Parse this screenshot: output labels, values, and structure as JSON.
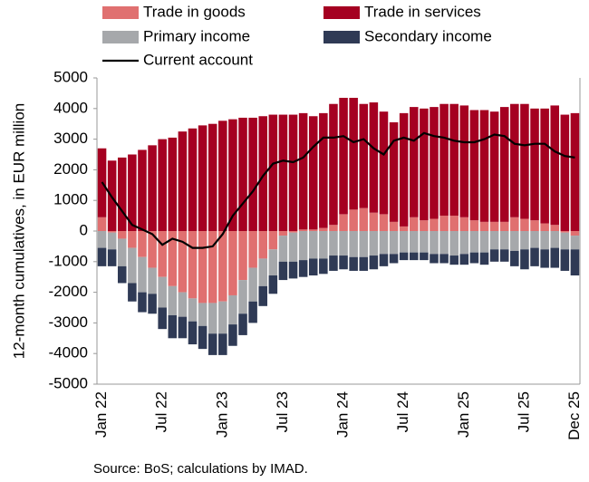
{
  "chart_data": {
    "type": "bar",
    "y_label": "12-month cumulatives, in EUR million",
    "source": "Source: BoS; calculations by IMAD.",
    "categories": [
      "Jan 22",
      null,
      null,
      null,
      null,
      null,
      "Jul 22",
      null,
      null,
      null,
      null,
      null,
      "Jan 23",
      null,
      null,
      null,
      null,
      null,
      "Jul 23",
      null,
      null,
      null,
      null,
      null,
      "Jan 24",
      null,
      null,
      null,
      null,
      null,
      "Jul 24",
      null,
      null,
      null,
      null,
      null,
      "Jan 25",
      null,
      null,
      null,
      null,
      null,
      "Jul 25",
      null,
      null,
      null,
      null,
      "Dec 25"
    ],
    "ylim": [
      -5000,
      5000
    ],
    "yticks": [
      5000,
      4000,
      3000,
      2000,
      1000,
      0,
      -1000,
      -2000,
      -3000,
      -4000,
      -5000
    ],
    "grid": false,
    "series": [
      {
        "name": "Trade in goods",
        "color": "#e07070",
        "type": "bar",
        "values": [
          450,
          -50,
          -250,
          -550,
          -850,
          -1200,
          -1500,
          -1800,
          -2000,
          -2200,
          -2350,
          -2350,
          -2300,
          -2100,
          -1600,
          -1200,
          -900,
          -600,
          -150,
          -50,
          50,
          50,
          100,
          200,
          550,
          700,
          750,
          600,
          550,
          300,
          150,
          450,
          350,
          400,
          500,
          500,
          450,
          350,
          300,
          300,
          300,
          450,
          400,
          350,
          250,
          200,
          -50,
          -150
        ]
      },
      {
        "name": "Trade in services",
        "color": "#a50021",
        "type": "bar",
        "values": [
          2250,
          2300,
          2400,
          2500,
          2650,
          2800,
          3000,
          3050,
          3250,
          3350,
          3450,
          3500,
          3600,
          3650,
          3700,
          3700,
          3750,
          3800,
          3800,
          3800,
          3800,
          3700,
          3750,
          3950,
          3800,
          3650,
          3400,
          3600,
          3350,
          3250,
          3700,
          3600,
          3650,
          3650,
          3650,
          3650,
          3650,
          3600,
          3650,
          3600,
          3750,
          3700,
          3750,
          3650,
          3750,
          3900,
          3800,
          3850
        ]
      },
      {
        "name": "Primary income",
        "color": "#a6a8ab",
        "type": "bar",
        "values": [
          -550,
          -550,
          -900,
          -1150,
          -1150,
          -850,
          -1000,
          -950,
          -800,
          -750,
          -750,
          -1000,
          -1050,
          -950,
          -1100,
          -1100,
          -900,
          -850,
          -850,
          -950,
          -950,
          -900,
          -900,
          -800,
          -800,
          -850,
          -850,
          -800,
          -750,
          -750,
          -700,
          -700,
          -700,
          -750,
          -750,
          -800,
          -750,
          -700,
          -700,
          -600,
          -600,
          -650,
          -600,
          -550,
          -600,
          -550,
          -550,
          -450
        ]
      },
      {
        "name": "Secondary income",
        "color": "#2f3a55",
        "type": "bar",
        "values": [
          -600,
          -550,
          -550,
          -600,
          -650,
          -650,
          -700,
          -750,
          -700,
          -750,
          -750,
          -700,
          -700,
          -700,
          -700,
          -700,
          -650,
          -600,
          -600,
          -550,
          -550,
          -550,
          -500,
          -500,
          -450,
          -450,
          -450,
          -450,
          -400,
          -300,
          -250,
          -250,
          -250,
          -300,
          -300,
          -300,
          -350,
          -350,
          -400,
          -400,
          -400,
          -500,
          -650,
          -600,
          -600,
          -650,
          -700,
          -850
        ]
      },
      {
        "name": "Current account",
        "color": "#000000",
        "type": "line",
        "values": [
          1600,
          1100,
          650,
          200,
          50,
          -100,
          -450,
          -250,
          -350,
          -550,
          -550,
          -500,
          -100,
          500,
          900,
          1300,
          1800,
          2200,
          2300,
          2250,
          2400,
          2750,
          3050,
          3050,
          3100,
          2900,
          3000,
          2700,
          2500,
          2950,
          3050,
          2950,
          3200,
          3100,
          3050,
          2950,
          2900,
          2900,
          3000,
          3150,
          3100,
          2850,
          2800,
          2850,
          2850,
          2600,
          2450,
          2400
        ]
      }
    ]
  }
}
